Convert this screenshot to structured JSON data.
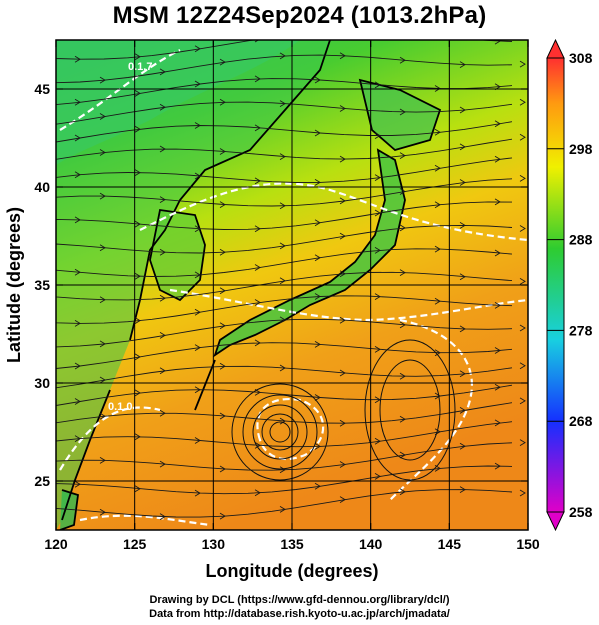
{
  "title": "MSM 12Z24Sep2024 (1013.2hPa)",
  "map": {
    "type": "wind-streamline-temperature-map",
    "region": "East Asia / Western Pacific",
    "x_axis": {
      "label": "Longitude (degrees)",
      "range": [
        120,
        150
      ],
      "ticks": [
        120,
        125,
        130,
        135,
        140,
        145,
        150
      ]
    },
    "y_axis": {
      "label": "Latitude  (degrees)",
      "range": [
        22.5,
        47.5
      ],
      "ticks": [
        25,
        30,
        35,
        40,
        45
      ]
    },
    "grid": true,
    "contour_labels": [
      "0.1.7",
      "0.1.0"
    ]
  },
  "colorbar": {
    "ticks": [
      258,
      268,
      278,
      288,
      298,
      308
    ],
    "colors": {
      "low": "#e000c8",
      "blue": "#1530ff",
      "cyan": "#18d0e0",
      "green": "#2ecc30",
      "yellow": "#f0f000",
      "orange": "#ff9a10",
      "high": "#ff3030"
    }
  },
  "credits": {
    "line1": "Drawing by DCL (https://www.gfd-dennou.org/library/dcl/)",
    "line2": "Data from http://database.rish.kyoto-u.ac.jp/arch/jmadata/"
  }
}
